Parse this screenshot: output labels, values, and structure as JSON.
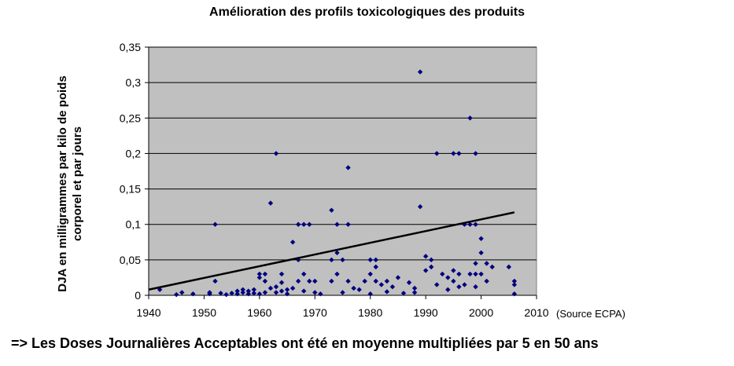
{
  "chart_data": {
    "type": "scatter",
    "title": "Amélioration des profils toxicologiques des produits",
    "ylabel_lines": [
      "DJA en milligrammes par kilo de poids",
      "corporel et par jours"
    ],
    "xlabel": "",
    "xlim": [
      1940,
      2010
    ],
    "ylim": [
      0,
      0.35
    ],
    "x_ticks": [
      1940,
      1950,
      1960,
      1970,
      1980,
      1990,
      2000,
      2010
    ],
    "y_ticks": [
      0,
      0.05,
      0.1,
      0.15,
      0.2,
      0.25,
      0.3,
      0.35
    ],
    "y_tick_labels": [
      "0",
      "0,05",
      "0,1",
      "0,15",
      "0,2",
      "0,25",
      "0,3",
      "0,35"
    ],
    "grid": true,
    "plot_background": "#c0c0c0",
    "point_color": "#00007f",
    "trend_color": "#000000",
    "points": [
      [
        1942,
        0.008
      ],
      [
        1945,
        0.001
      ],
      [
        1946,
        0.004
      ],
      [
        1948,
        0.002
      ],
      [
        1951,
        0.002
      ],
      [
        1951,
        0.004
      ],
      [
        1952,
        0.1
      ],
      [
        1952,
        0.02
      ],
      [
        1953,
        0.003
      ],
      [
        1954,
        0.001
      ],
      [
        1955,
        0.003
      ],
      [
        1956,
        0.002
      ],
      [
        1956,
        0.006
      ],
      [
        1957,
        0.008
      ],
      [
        1957,
        0.004
      ],
      [
        1958,
        0.002
      ],
      [
        1958,
        0.006
      ],
      [
        1959,
        0.003
      ],
      [
        1959,
        0.008
      ],
      [
        1960,
        0.002
      ],
      [
        1960,
        0.025
      ],
      [
        1960,
        0.03
      ],
      [
        1961,
        0.02
      ],
      [
        1961,
        0.03
      ],
      [
        1961,
        0.004
      ],
      [
        1962,
        0.13
      ],
      [
        1962,
        0.01
      ],
      [
        1963,
        0.2
      ],
      [
        1963,
        0.004
      ],
      [
        1963,
        0.012
      ],
      [
        1964,
        0.03
      ],
      [
        1964,
        0.018
      ],
      [
        1964,
        0.006
      ],
      [
        1965,
        0.008
      ],
      [
        1965,
        0.002
      ],
      [
        1966,
        0.075
      ],
      [
        1966,
        0.01
      ],
      [
        1967,
        0.1
      ],
      [
        1967,
        0.05
      ],
      [
        1967,
        0.02
      ],
      [
        1968,
        0.1
      ],
      [
        1968,
        0.03
      ],
      [
        1968,
        0.006
      ],
      [
        1969,
        0.1
      ],
      [
        1969,
        0.02
      ],
      [
        1970,
        0.02
      ],
      [
        1970,
        0.004
      ],
      [
        1971,
        0.002
      ],
      [
        1973,
        0.12
      ],
      [
        1973,
        0.05
      ],
      [
        1973,
        0.02
      ],
      [
        1974,
        0.1
      ],
      [
        1974,
        0.06
      ],
      [
        1974,
        0.03
      ],
      [
        1975,
        0.05
      ],
      [
        1975,
        0.004
      ],
      [
        1976,
        0.18
      ],
      [
        1976,
        0.1
      ],
      [
        1976,
        0.02
      ],
      [
        1977,
        0.01
      ],
      [
        1978,
        0.008
      ],
      [
        1979,
        0.02
      ],
      [
        1980,
        0.05
      ],
      [
        1980,
        0.03
      ],
      [
        1980,
        0.002
      ],
      [
        1981,
        0.05
      ],
      [
        1981,
        0.04
      ],
      [
        1981,
        0.02
      ],
      [
        1982,
        0.015
      ],
      [
        1983,
        0.02
      ],
      [
        1983,
        0.005
      ],
      [
        1984,
        0.012
      ],
      [
        1985,
        0.025
      ],
      [
        1986,
        0.003
      ],
      [
        1987,
        0.018
      ],
      [
        1988,
        0.01
      ],
      [
        1988,
        0.004
      ],
      [
        1989,
        0.315
      ],
      [
        1989,
        0.125
      ],
      [
        1990,
        0.055
      ],
      [
        1990,
        0.035
      ],
      [
        1991,
        0.05
      ],
      [
        1991,
        0.04
      ],
      [
        1992,
        0.2
      ],
      [
        1992,
        0.015
      ],
      [
        1993,
        0.03
      ],
      [
        1994,
        0.025
      ],
      [
        1994,
        0.008
      ],
      [
        1995,
        0.2
      ],
      [
        1995,
        0.035
      ],
      [
        1995,
        0.02
      ],
      [
        1996,
        0.2
      ],
      [
        1996,
        0.03
      ],
      [
        1996,
        0.012
      ],
      [
        1997,
        0.1
      ],
      [
        1997,
        0.015
      ],
      [
        1998,
        0.25
      ],
      [
        1998,
        0.1
      ],
      [
        1998,
        0.03
      ],
      [
        1999,
        0.2
      ],
      [
        1999,
        0.1
      ],
      [
        1999,
        0.045
      ],
      [
        1999,
        0.03
      ],
      [
        1999,
        0.012
      ],
      [
        2000,
        0.08
      ],
      [
        2000,
        0.06
      ],
      [
        2000,
        0.03
      ],
      [
        2001,
        0.045
      ],
      [
        2001,
        0.02
      ],
      [
        2002,
        0.04
      ],
      [
        2005,
        0.04
      ],
      [
        2006,
        0.02
      ],
      [
        2006,
        0.015
      ],
      [
        2006,
        0.002
      ]
    ],
    "trend_line": {
      "x": [
        1940,
        2006
      ],
      "y": [
        0.008,
        0.117
      ]
    }
  },
  "footer": {
    "source": "(Source ECPA)",
    "conclusion": "=> Les Doses Journalières Acceptables ont été en moyenne multipliées par 5 en 50 ans"
  }
}
